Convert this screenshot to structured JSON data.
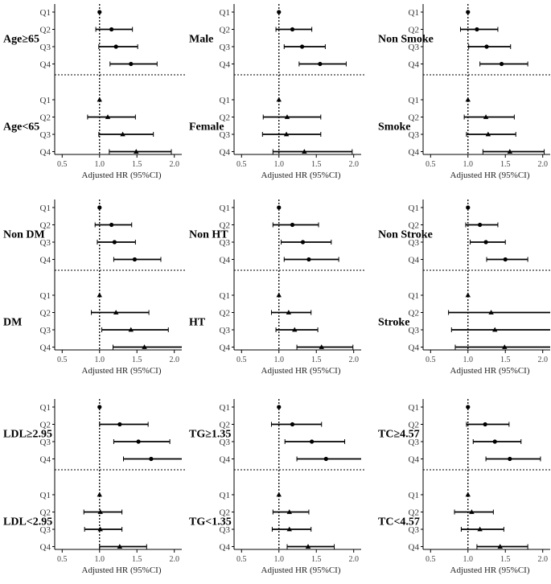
{
  "chart_data": {
    "type": "forest",
    "xlabel": "Adjusted HR (95%CI)",
    "ticks": [
      "0.5",
      "1.0",
      "1.5",
      "2.0"
    ],
    "xlim": [
      0.4,
      2.1
    ],
    "reference_x": 1.0,
    "quartile_labels": [
      "Q1",
      "Q2",
      "Q3",
      "Q4"
    ],
    "panels": [
      {
        "groups": [
          {
            "label": "Age≥65",
            "marker": "circle",
            "rows": [
              {
                "hr": 1.0,
                "lo": 1.0,
                "hi": 1.0
              },
              {
                "hr": 1.16,
                "lo": 0.95,
                "hi": 1.44
              },
              {
                "hr": 1.22,
                "lo": 0.99,
                "hi": 1.51
              },
              {
                "hr": 1.42,
                "lo": 1.14,
                "hi": 1.77
              }
            ]
          },
          {
            "label": "Age<65",
            "marker": "triangle",
            "rows": [
              {
                "hr": 1.0,
                "lo": 1.0,
                "hi": 1.0
              },
              {
                "hr": 1.11,
                "lo": 0.84,
                "hi": 1.48
              },
              {
                "hr": 1.31,
                "lo": 0.99,
                "hi": 1.72
              },
              {
                "hr": 1.49,
                "lo": 1.13,
                "hi": 1.96
              }
            ]
          }
        ]
      },
      {
        "groups": [
          {
            "label": "Male",
            "marker": "circle",
            "rows": [
              {
                "hr": 1.0,
                "lo": 1.0,
                "hi": 1.0
              },
              {
                "hr": 1.18,
                "lo": 0.96,
                "hi": 1.44
              },
              {
                "hr": 1.31,
                "lo": 1.07,
                "hi": 1.62
              },
              {
                "hr": 1.55,
                "lo": 1.27,
                "hi": 1.9
              }
            ]
          },
          {
            "label": "Female",
            "marker": "triangle",
            "rows": [
              {
                "hr": 1.0,
                "lo": 1.0,
                "hi": 1.0
              },
              {
                "hr": 1.11,
                "lo": 0.79,
                "hi": 1.56
              },
              {
                "hr": 1.1,
                "lo": 0.78,
                "hi": 1.56
              },
              {
                "hr": 1.34,
                "lo": 0.92,
                "hi": 1.98
              }
            ]
          }
        ]
      },
      {
        "groups": [
          {
            "label": "Non Smoke",
            "marker": "circle",
            "rows": [
              {
                "hr": 1.0,
                "lo": 1.0,
                "hi": 1.0
              },
              {
                "hr": 1.12,
                "lo": 0.9,
                "hi": 1.4
              },
              {
                "hr": 1.25,
                "lo": 1.01,
                "hi": 1.57
              },
              {
                "hr": 1.45,
                "lo": 1.16,
                "hi": 1.8
              }
            ]
          },
          {
            "label": "Smoke",
            "marker": "triangle",
            "rows": [
              {
                "hr": 1.0,
                "lo": 1.0,
                "hi": 1.0
              },
              {
                "hr": 1.24,
                "lo": 0.95,
                "hi": 1.62
              },
              {
                "hr": 1.27,
                "lo": 0.98,
                "hi": 1.64
              },
              {
                "hr": 1.56,
                "lo": 1.2,
                "hi": 2.02
              }
            ]
          }
        ]
      },
      {
        "groups": [
          {
            "label": "Non DM",
            "marker": "circle",
            "rows": [
              {
                "hr": 1.0,
                "lo": 1.0,
                "hi": 1.0
              },
              {
                "hr": 1.16,
                "lo": 0.94,
                "hi": 1.43
              },
              {
                "hr": 1.2,
                "lo": 0.97,
                "hi": 1.48
              },
              {
                "hr": 1.47,
                "lo": 1.19,
                "hi": 1.82
              }
            ]
          },
          {
            "label": "DM",
            "marker": "triangle",
            "rows": [
              {
                "hr": 1.0,
                "lo": 1.0,
                "hi": 1.0
              },
              {
                "hr": 1.22,
                "lo": 0.89,
                "hi": 1.66
              },
              {
                "hr": 1.42,
                "lo": 1.03,
                "hi": 1.92
              },
              {
                "hr": 1.6,
                "lo": 1.18,
                "hi": 2.14
              }
            ]
          }
        ]
      },
      {
        "groups": [
          {
            "label": "Non HT",
            "marker": "circle",
            "rows": [
              {
                "hr": 1.0,
                "lo": 1.0,
                "hi": 1.0
              },
              {
                "hr": 1.18,
                "lo": 0.92,
                "hi": 1.53
              },
              {
                "hr": 1.32,
                "lo": 1.03,
                "hi": 1.7
              },
              {
                "hr": 1.4,
                "lo": 1.07,
                "hi": 1.8
              }
            ]
          },
          {
            "label": "HT",
            "marker": "triangle",
            "rows": [
              {
                "hr": 1.0,
                "lo": 1.0,
                "hi": 1.0
              },
              {
                "hr": 1.13,
                "lo": 0.9,
                "hi": 1.43
              },
              {
                "hr": 1.21,
                "lo": 0.96,
                "hi": 1.52
              },
              {
                "hr": 1.57,
                "lo": 1.24,
                "hi": 1.99
              }
            ]
          }
        ]
      },
      {
        "groups": [
          {
            "label": "Non Stroke",
            "marker": "circle",
            "rows": [
              {
                "hr": 1.0,
                "lo": 1.0,
                "hi": 1.0
              },
              {
                "hr": 1.16,
                "lo": 0.97,
                "hi": 1.4
              },
              {
                "hr": 1.24,
                "lo": 1.03,
                "hi": 1.5
              },
              {
                "hr": 1.5,
                "lo": 1.25,
                "hi": 1.8
              }
            ]
          },
          {
            "label": "Stroke",
            "marker": "triangle",
            "rows": [
              {
                "hr": 1.0,
                "lo": 1.0,
                "hi": 1.0
              },
              {
                "hr": 1.31,
                "lo": 0.74,
                "hi": 2.3
              },
              {
                "hr": 1.36,
                "lo": 0.78,
                "hi": 2.38
              },
              {
                "hr": 1.49,
                "lo": 0.83,
                "hi": 2.66
              }
            ]
          }
        ]
      },
      {
        "groups": [
          {
            "label": "LDL≥2.95",
            "marker": "circle",
            "rows": [
              {
                "hr": 1.0,
                "lo": 1.0,
                "hi": 1.0
              },
              {
                "hr": 1.27,
                "lo": 1.0,
                "hi": 1.65
              },
              {
                "hr": 1.52,
                "lo": 1.19,
                "hi": 1.94
              },
              {
                "hr": 1.69,
                "lo": 1.32,
                "hi": 2.16
              }
            ]
          },
          {
            "label": "LDL<2.95",
            "marker": "triangle",
            "rows": [
              {
                "hr": 1.0,
                "lo": 1.0,
                "hi": 1.0
              },
              {
                "hr": 1.01,
                "lo": 0.79,
                "hi": 1.3
              },
              {
                "hr": 1.01,
                "lo": 0.8,
                "hi": 1.3
              },
              {
                "hr": 1.27,
                "lo": 1.0,
                "hi": 1.63
              }
            ]
          }
        ]
      },
      {
        "groups": [
          {
            "label": "TG≥1.35",
            "marker": "circle",
            "rows": [
              {
                "hr": 1.0,
                "lo": 1.0,
                "hi": 1.0
              },
              {
                "hr": 1.18,
                "lo": 0.9,
                "hi": 1.57
              },
              {
                "hr": 1.44,
                "lo": 1.08,
                "hi": 1.88
              },
              {
                "hr": 1.63,
                "lo": 1.24,
                "hi": 2.13
              }
            ]
          },
          {
            "label": "TG<1.35",
            "marker": "triangle",
            "rows": [
              {
                "hr": 1.0,
                "lo": 1.0,
                "hi": 1.0
              },
              {
                "hr": 1.14,
                "lo": 0.92,
                "hi": 1.4
              },
              {
                "hr": 1.14,
                "lo": 0.91,
                "hi": 1.43
              },
              {
                "hr": 1.39,
                "lo": 1.11,
                "hi": 1.74
              }
            ]
          }
        ]
      },
      {
        "groups": [
          {
            "label": "TC≥4.57",
            "marker": "circle",
            "rows": [
              {
                "hr": 1.0,
                "lo": 1.0,
                "hi": 1.0
              },
              {
                "hr": 1.23,
                "lo": 0.98,
                "hi": 1.55
              },
              {
                "hr": 1.36,
                "lo": 1.07,
                "hi": 1.71
              },
              {
                "hr": 1.56,
                "lo": 1.24,
                "hi": 1.97
              }
            ]
          },
          {
            "label": "TC<4.57",
            "marker": "triangle",
            "rows": [
              {
                "hr": 1.0,
                "lo": 1.0,
                "hi": 1.0
              },
              {
                "hr": 1.05,
                "lo": 0.82,
                "hi": 1.34
              },
              {
                "hr": 1.16,
                "lo": 0.91,
                "hi": 1.48
              },
              {
                "hr": 1.43,
                "lo": 1.12,
                "hi": 1.8
              }
            ]
          }
        ]
      }
    ]
  }
}
